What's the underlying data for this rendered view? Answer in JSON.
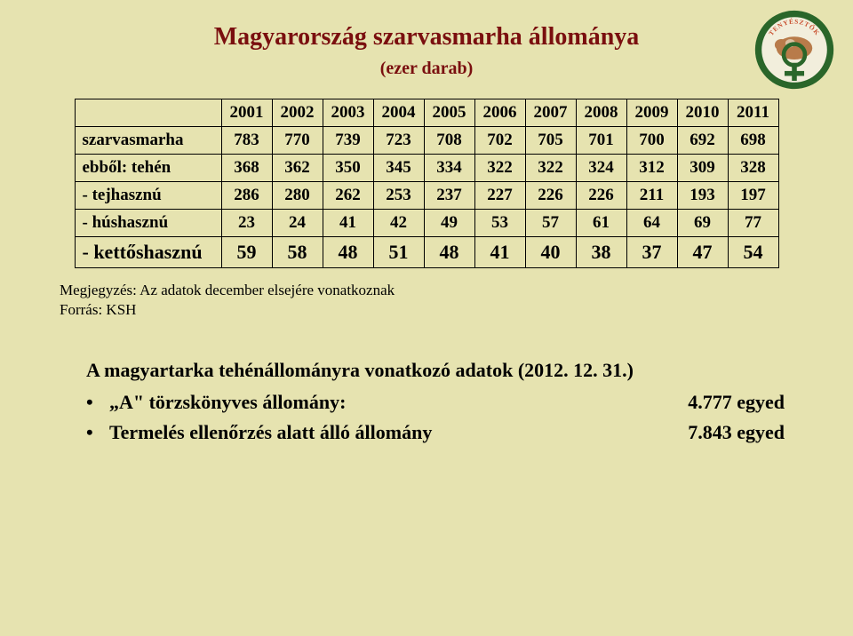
{
  "title": "Magyarország szarvasmarha állománya",
  "subtitle": "(ezer darab)",
  "table": {
    "columns": [
      "2001",
      "2002",
      "2003",
      "2004",
      "2005",
      "2006",
      "2007",
      "2008",
      "2009",
      "2010",
      "2011"
    ],
    "rows": [
      {
        "label": "szarvasmarha",
        "values": [
          "783",
          "770",
          "739",
          "723",
          "708",
          "702",
          "705",
          "701",
          "700",
          "692",
          "698"
        ],
        "highlight": false
      },
      {
        "label": "ebből: tehén",
        "values": [
          "368",
          "362",
          "350",
          "345",
          "334",
          "322",
          "322",
          "324",
          "312",
          "309",
          "328"
        ],
        "highlight": false
      },
      {
        "label": "- tejhasznú",
        "values": [
          "286",
          "280",
          "262",
          "253",
          "237",
          "227",
          "226",
          "226",
          "211",
          "193",
          "197"
        ],
        "highlight": false
      },
      {
        "label": "- húshasznú",
        "values": [
          "23",
          "24",
          "41",
          "42",
          "49",
          "53",
          "57",
          "61",
          "64",
          "69",
          "77"
        ],
        "highlight": false
      },
      {
        "label": "- kettőshasznú",
        "values": [
          "59",
          "58",
          "48",
          "51",
          "48",
          "41",
          "40",
          "38",
          "37",
          "47",
          "54"
        ],
        "highlight": true
      }
    ],
    "cell_fontsize": 19,
    "highlight_fontsize": 22,
    "border_color": "#000000"
  },
  "notes": {
    "line1": "Megjegyzés: Az adatok december elsejére vonatkoznak",
    "line2": "Forrás: KSH"
  },
  "section_title": "A magyartarka tehénállományra vonatkozó adatok (2012. 12. 31.)",
  "bullets": [
    {
      "label": "„A\" törzskönyves állomány:",
      "value": "4.777 egyed"
    },
    {
      "label": "Termelés ellenőrzés alatt álló állomány",
      "value": "7.843 egyed"
    }
  ],
  "colors": {
    "background": "#e6e3b0",
    "title_color": "#7a0f0f",
    "text_color": "#000000",
    "logo_ring_outer": "#2a662a",
    "logo_ring_text": "#c94f2f",
    "logo_inner": "#f2eedc"
  },
  "logo": {
    "top_text": "TENYÉSZTŐK",
    "cross_color": "#2a662a"
  }
}
